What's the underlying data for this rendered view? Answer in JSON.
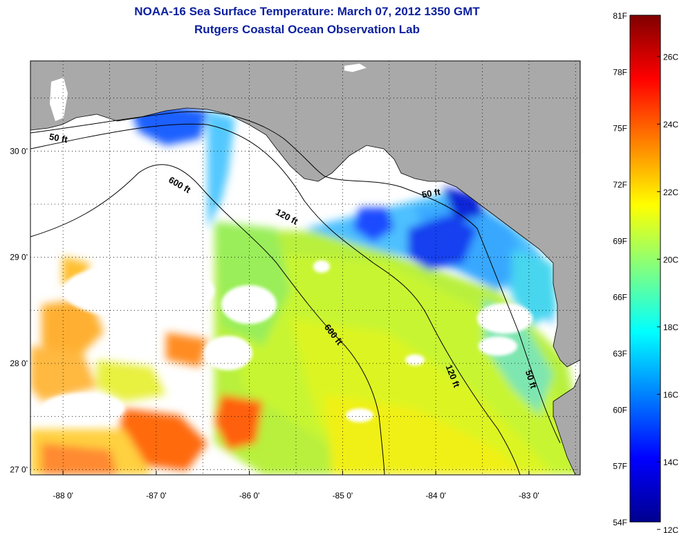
{
  "header": {
    "title": "NOAA-16 Sea Surface Temperature:  March 07, 2012 1350 GMT",
    "subtitle": "Rutgers Coastal Ocean Observation Lab"
  },
  "map": {
    "lon_range": [
      -88.35,
      -82.45
    ],
    "lat_range": [
      26.95,
      30.85
    ],
    "x_ticks": [
      {
        "lon": -88,
        "label": "-88 0'"
      },
      {
        "lon": -87,
        "label": "-87 0'"
      },
      {
        "lon": -86,
        "label": "-86 0'"
      },
      {
        "lon": -85,
        "label": "-85 0'"
      },
      {
        "lon": -84,
        "label": "-84 0'"
      },
      {
        "lon": -83,
        "label": "-83 0'"
      }
    ],
    "y_ticks": [
      {
        "lat": 30,
        "label": "30 0'"
      },
      {
        "lat": 29,
        "label": "29 0'"
      },
      {
        "lat": 28,
        "label": "28 0'"
      },
      {
        "lat": 27,
        "label": "27 0'"
      }
    ],
    "grid": "dotted",
    "land_color": "#a9a9a9",
    "cloud_color": "#ffffff",
    "contour_labels": [
      {
        "text": "50 ft",
        "lon": -88.05,
        "lat": 30.12,
        "rotate": 10
      },
      {
        "text": "600 ft",
        "lon": -86.75,
        "lat": 29.68,
        "rotate": 30
      },
      {
        "text": "120 ft",
        "lon": -85.6,
        "lat": 29.38,
        "rotate": 28
      },
      {
        "text": "50 ft",
        "lon": -84.05,
        "lat": 29.6,
        "rotate": -10
      },
      {
        "text": "600 ft",
        "lon": -85.1,
        "lat": 28.27,
        "rotate": 52
      },
      {
        "text": "120 ft",
        "lon": -83.82,
        "lat": 27.88,
        "rotate": 68
      },
      {
        "text": "50 ft",
        "lon": -82.98,
        "lat": 27.85,
        "rotate": 72
      }
    ]
  },
  "colorbar": {
    "range_f": [
      54,
      81
    ],
    "stops": [
      "#00008f",
      "#0000ff",
      "#0080ff",
      "#00ffff",
      "#80ff80",
      "#ffff00",
      "#ff8000",
      "#ff0000",
      "#800000"
    ],
    "labels_f": [
      {
        "v": 81,
        "label": "81F"
      },
      {
        "v": 78,
        "label": "78F"
      },
      {
        "v": 75,
        "label": "75F"
      },
      {
        "v": 72,
        "label": "72F"
      },
      {
        "v": 69,
        "label": "69F"
      },
      {
        "v": 66,
        "label": "66F"
      },
      {
        "v": 63,
        "label": "63F"
      },
      {
        "v": 60,
        "label": "60F"
      },
      {
        "v": 57,
        "label": "57F"
      },
      {
        "v": 54,
        "label": "54F"
      }
    ],
    "labels_c": [
      {
        "v": 26,
        "label": "26C"
      },
      {
        "v": 24,
        "label": "24C"
      },
      {
        "v": 22,
        "label": "22C"
      },
      {
        "v": 20,
        "label": "20C"
      },
      {
        "v": 18,
        "label": "18C"
      },
      {
        "v": 16,
        "label": "16C"
      },
      {
        "v": 14,
        "label": "14C"
      },
      {
        "v": 12,
        "label": "12C"
      }
    ]
  }
}
